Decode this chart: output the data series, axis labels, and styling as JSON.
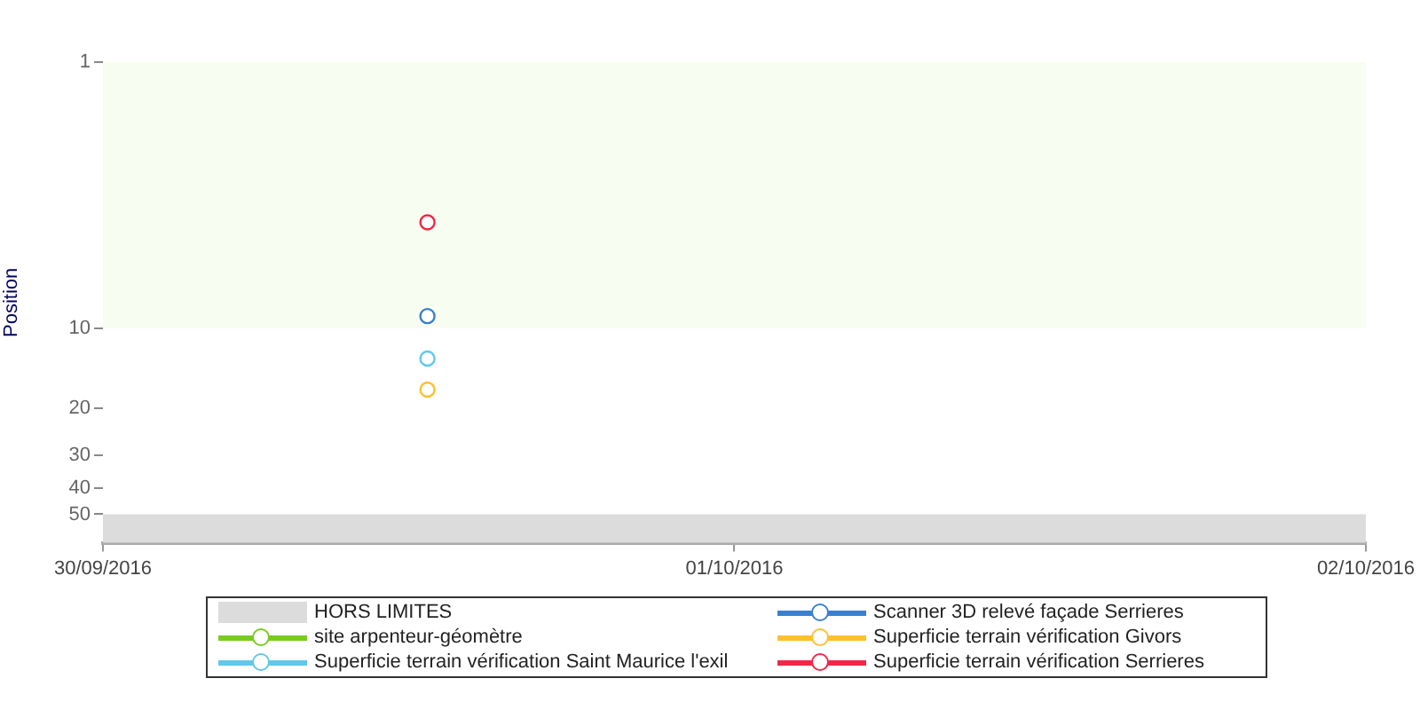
{
  "chart_data": {
    "type": "line",
    "ylabel": "Position",
    "x": [
      "2016-09-30T12:20"
    ],
    "series": [
      {
        "name": "Scanner 3D relevé façade Serrieres",
        "color": "#3a80d0",
        "values": [
          9
        ]
      },
      {
        "name": "site arpenteur-géomètre",
        "color": "#78cc20",
        "values": [
          null
        ]
      },
      {
        "name": "Superficie terrain vérification Givors",
        "color": "#ffc030",
        "values": [
          17
        ]
      },
      {
        "name": "Superficie terrain vérification Saint Maurice l'exil",
        "color": "#60c8e8",
        "values": [
          13
        ]
      },
      {
        "name": "Superficie terrain vérification Serrieres",
        "color": "#f02848",
        "values": [
          4
        ]
      }
    ],
    "log": "y",
    "ylim": [
      64,
      1
    ],
    "yticks": [
      1,
      10,
      20,
      30,
      40,
      50
    ],
    "xlim": [
      "2016-09-30",
      "2016-10-02"
    ],
    "xticks": [
      {
        "value": "2016-09-30",
        "label": "30/09/2016"
      },
      {
        "value": "2016-10-01",
        "label": "01/10/2016"
      },
      {
        "value": "2016-10-02",
        "label": "02/10/2016"
      }
    ],
    "bands": [
      {
        "axis": "y",
        "from": 1,
        "to": 10,
        "color": "#f8fdf2"
      },
      {
        "axis": "y",
        "from": 50,
        "to": 64,
        "label": "HORS LIMITES",
        "color": "#dcdcdc"
      }
    ],
    "marker": "circle",
    "legend": "bottom",
    "grid": false
  }
}
